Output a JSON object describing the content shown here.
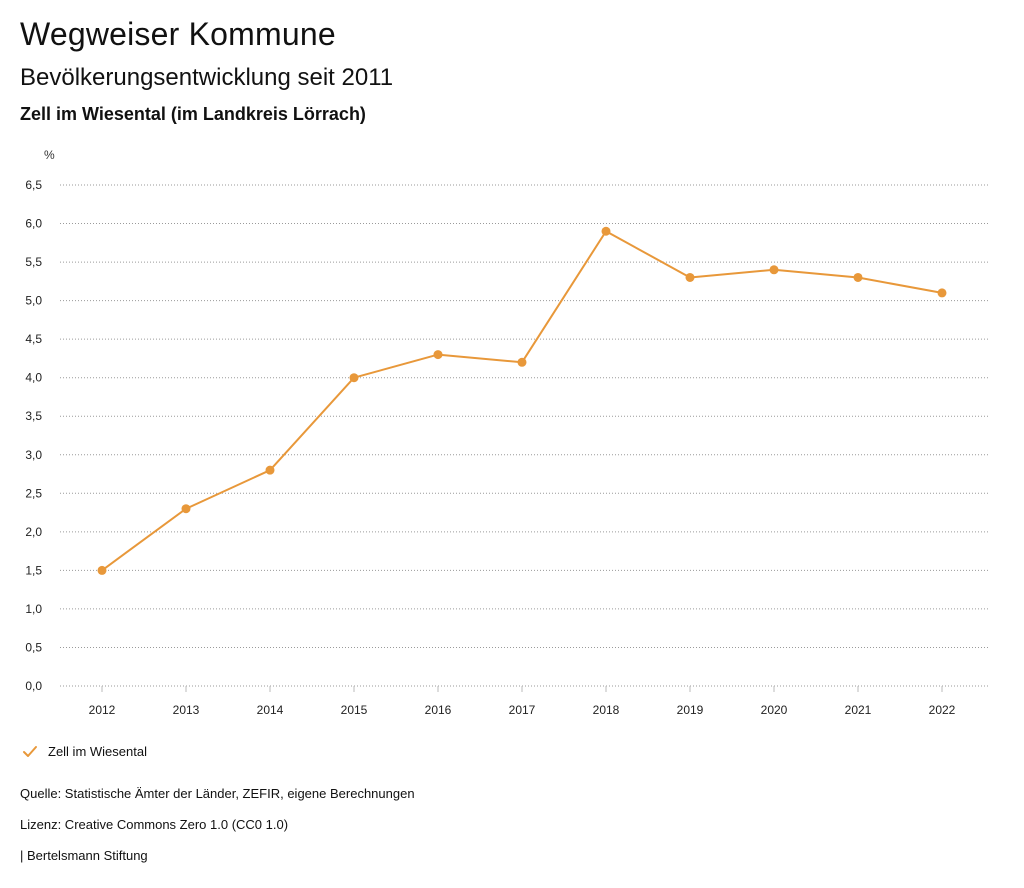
{
  "header": {
    "title": "Wegweiser Kommune",
    "subtitle": "Bevölkerungsentwicklung seit 2011",
    "region": "Zell im Wiesental (im Landkreis Lörrach)"
  },
  "chart_data": {
    "type": "line",
    "title": "Bevölkerungsentwicklung seit 2011",
    "ylabel": "%",
    "xlabel": "",
    "categories": [
      "2012",
      "2013",
      "2014",
      "2015",
      "2016",
      "2017",
      "2018",
      "2019",
      "2020",
      "2021",
      "2022"
    ],
    "series": [
      {
        "name": "Zell im Wiesental",
        "values": [
          1.5,
          2.3,
          2.8,
          4.0,
          4.3,
          4.2,
          5.9,
          5.3,
          5.4,
          5.3,
          5.1
        ]
      }
    ],
    "ylim": [
      0,
      6.5
    ],
    "yticks": [
      "0,0",
      "0,5",
      "1,0",
      "1,5",
      "2,0",
      "2,5",
      "3,0",
      "3,5",
      "4,0",
      "4,5",
      "5,0",
      "5,5",
      "6,0",
      "6,5"
    ],
    "grid": true,
    "legend": "bottom-left",
    "color": "#e8983a"
  },
  "legend": {
    "label": "Zell im Wiesental",
    "icon": "check-icon"
  },
  "footer": {
    "source": "Quelle: Statistische Ämter der Länder, ZEFIR, eigene Berechnungen",
    "license": "Lizenz: Creative Commons Zero 1.0 (CC0 1.0)",
    "publisher": "| Bertelsmann Stiftung"
  }
}
